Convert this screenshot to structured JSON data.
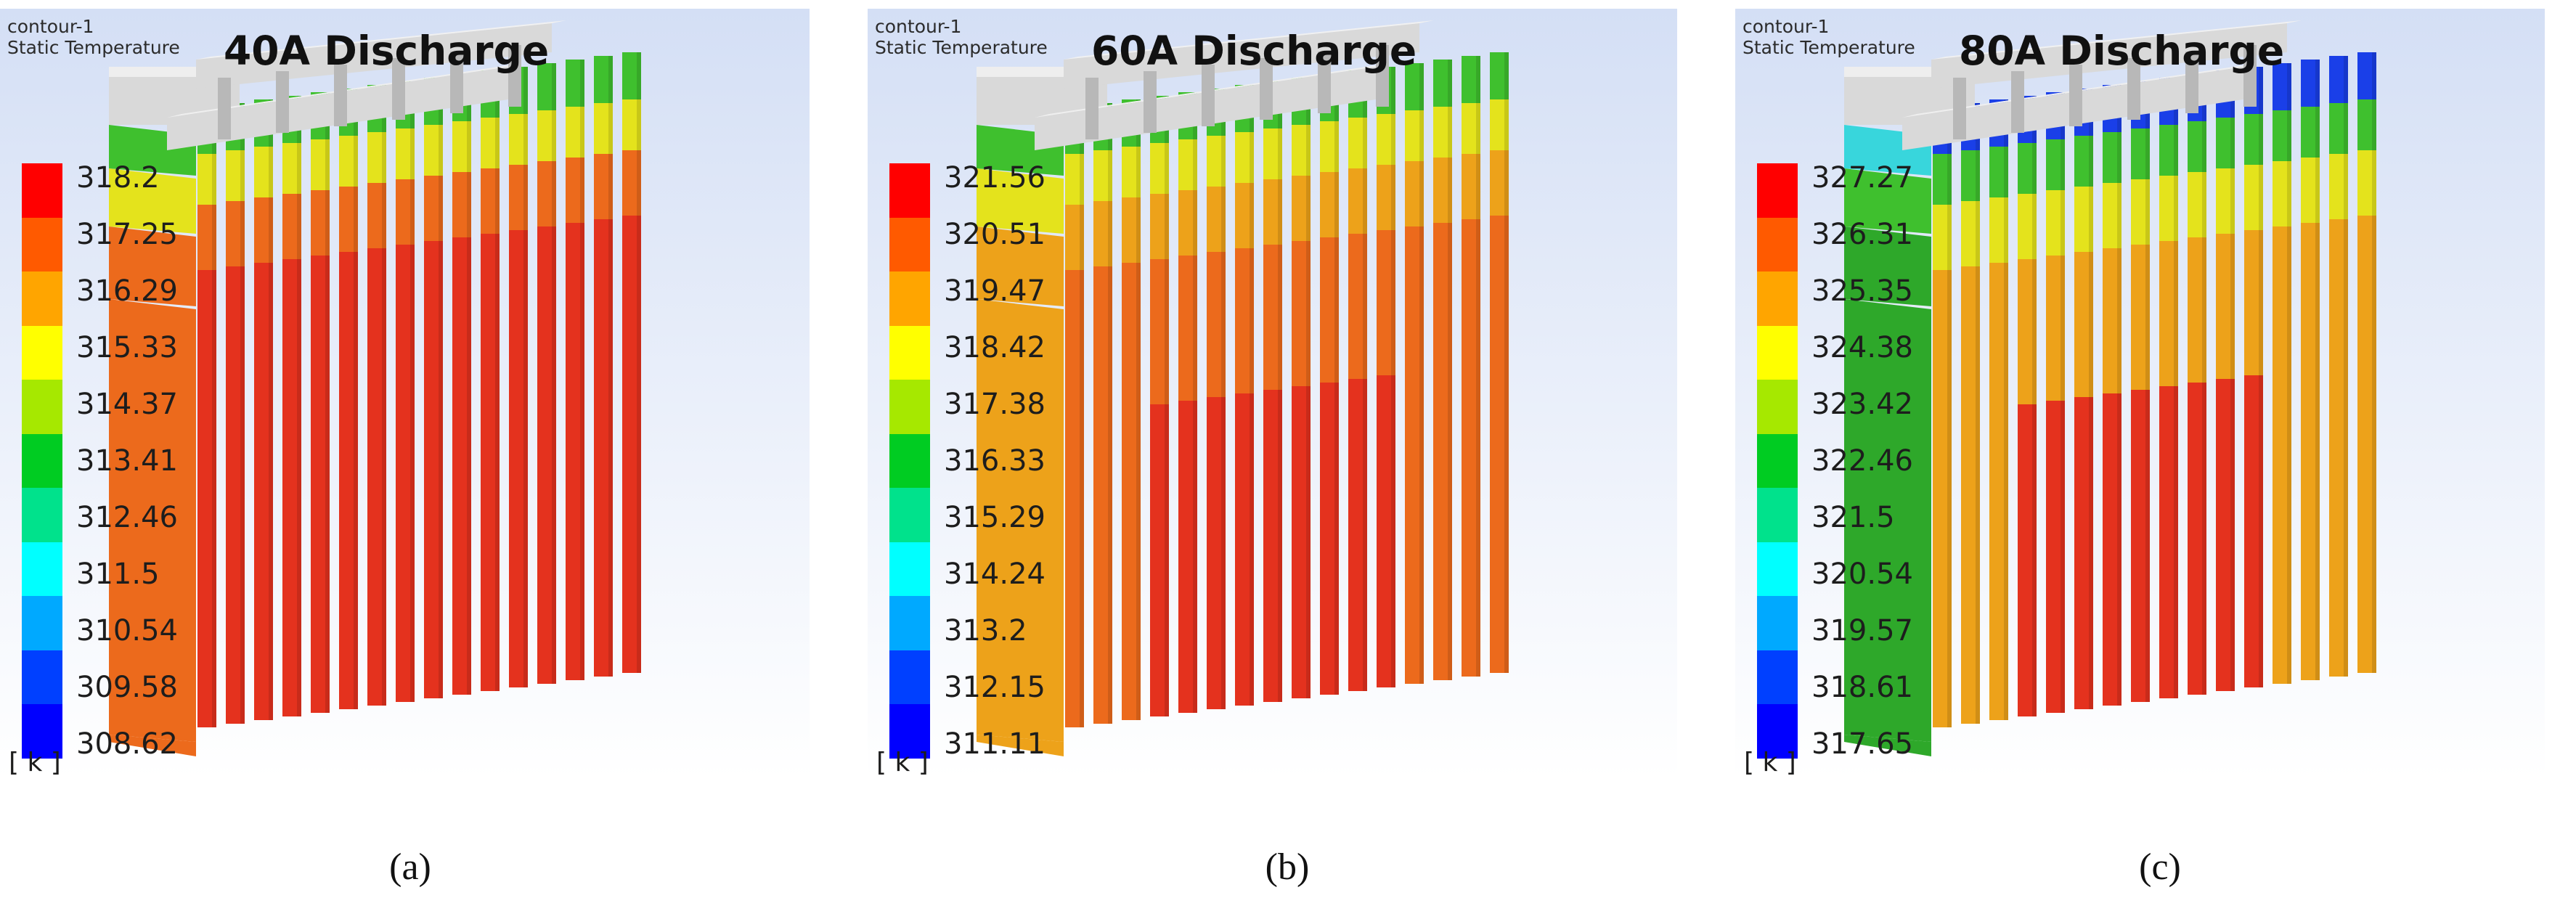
{
  "unit_label": "[ k ]",
  "contour_name": "contour-1",
  "variable_name": "Static Temperature",
  "colormap": [
    "#ff0000",
    "#ff5a00",
    "#ffa500",
    "#ffff00",
    "#a6e800",
    "#00cc22",
    "#00e28c",
    "#00ffff",
    "#00a9ff",
    "#0040ff",
    "#0000ff"
  ],
  "body_colors": {
    "hot": "#e4321e",
    "warm": "#ec6a1c",
    "mid": "#eda21a",
    "yellow": "#e4e31c",
    "green": "#3fc02e",
    "green_dark": "#2ea82a",
    "cyan": "#38d6dc",
    "blue": "#1a3fe8",
    "tab": "#d9d9d9",
    "tab_shade": "#b8b8b8"
  },
  "panels": [
    {
      "id": "a",
      "title": "40A Discharge",
      "caption": "(a)",
      "legend": [
        "318.2",
        "317.25",
        "316.29",
        "315.33",
        "314.37",
        "313.41",
        "312.46",
        "311.5",
        "310.54",
        "309.58",
        "308.62"
      ]
    },
    {
      "id": "b",
      "title": "60A Discharge",
      "caption": "(b)",
      "legend": [
        "321.56",
        "320.51",
        "319.47",
        "318.42",
        "317.38",
        "316.33",
        "315.29",
        "314.24",
        "313.2",
        "312.15",
        "311.11"
      ]
    },
    {
      "id": "c",
      "title": "80A Discharge",
      "caption": "(c)",
      "legend": [
        "327.27",
        "326.31",
        "325.35",
        "324.38",
        "323.42",
        "322.46",
        "321.5",
        "320.54",
        "319.57",
        "318.61",
        "317.65"
      ]
    }
  ]
}
